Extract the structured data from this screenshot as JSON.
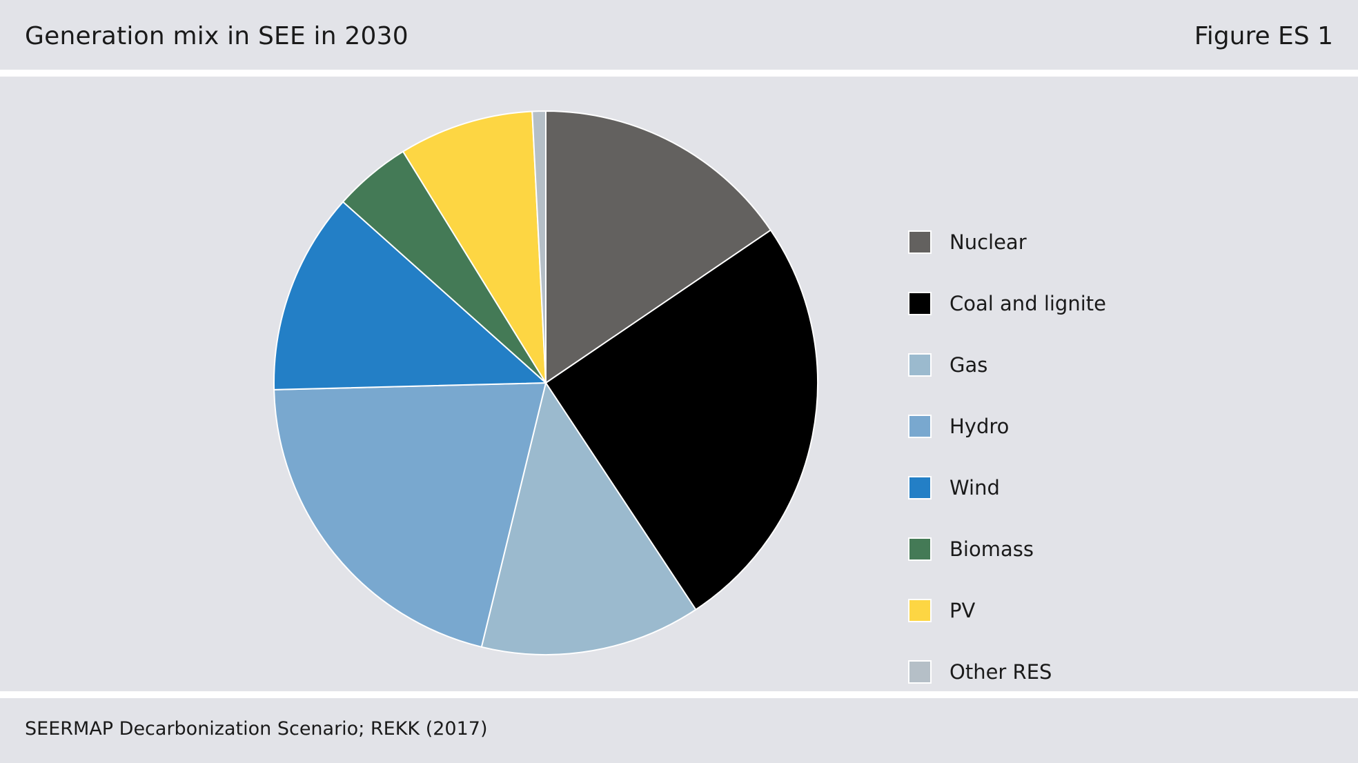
{
  "header": {
    "title": "Generation mix in SEE in 2030",
    "figure_label": "Figure ES 1"
  },
  "footer": {
    "source": "SEERMAP Decarbonization Scenario; REKK (2017)"
  },
  "chart_data": {
    "type": "pie",
    "title": "Generation mix in SEE in 2030",
    "legend_position": "right",
    "start_angle": "top, clockwise",
    "categories": [
      "Nuclear",
      "Coal and lignite",
      "Gas",
      "Hydro",
      "Wind",
      "Biomass",
      "PV",
      "Other RES"
    ],
    "values": [
      15.5,
      25.2,
      13.1,
      20.8,
      12.0,
      4.6,
      8.0,
      0.8
    ],
    "colors": [
      "#63615f",
      "#000000",
      "#9bbace",
      "#79a8cf",
      "#237fc6",
      "#447a56",
      "#fdd643",
      "#b5bfc7"
    ]
  }
}
